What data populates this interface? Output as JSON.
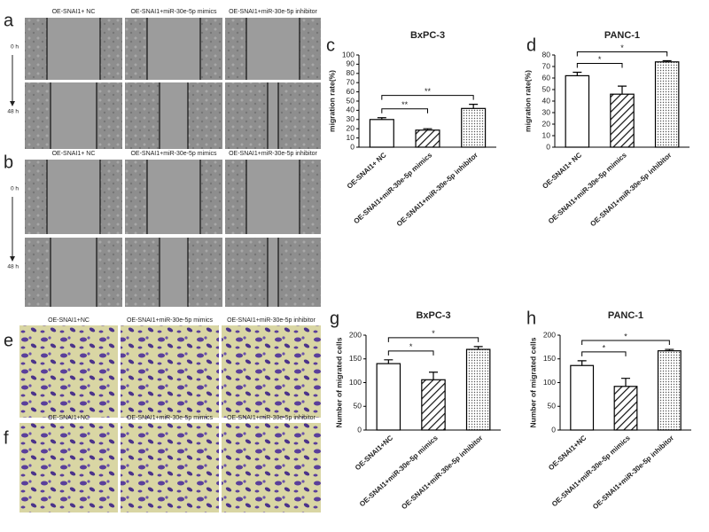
{
  "wound_healing": [
    {
      "label": "a",
      "columns": [
        "OE-SNAI1+ NC",
        "OE-SNAI1+miR-30e-5p mimics",
        "OE-SNAI1+miR-30e-5p inhibitor"
      ],
      "rows": [
        "0 h",
        "48 h"
      ]
    },
    {
      "label": "b",
      "columns": [
        "OE-SNAI1+ NC",
        "OE-SNAI1+miR-30e-5p mimics",
        "OE-SNAI1+miR-30e-5p inhibitor"
      ],
      "rows": [
        "0 h",
        "48 h"
      ]
    }
  ],
  "transwell": [
    {
      "label": "e",
      "columns": [
        "OE-SNAI1+NC",
        "OE-SNAI1+miR-30e-5p mimics",
        "OE-SNAI1+miR-30e-5p inhibitor"
      ]
    },
    {
      "label": "f",
      "columns": [
        "OE-SNAI1+NC",
        "OE-SNAI1+miR-30e-5p mimics",
        "OE-SNAI1+miR-30e-5p inhibitor"
      ]
    }
  ],
  "chart_data": [
    {
      "type": "bar",
      "label": "c",
      "title": "BxPC-3",
      "y_label": "migration rate(%)",
      "categories": [
        "OE-SNAI1+ NC",
        "OE-SNAI1+miR-30e-5p mimics",
        "OE-SNAI1+miR-30e-5p inhibitor"
      ],
      "values": [
        30,
        18.5,
        42
      ],
      "errors": [
        2,
        1.5,
        4.5
      ],
      "patterns": [
        "none",
        "diagonal",
        "dotted"
      ],
      "color": "#000000",
      "ylim": [
        0,
        100
      ],
      "yticks": [
        0,
        10,
        20,
        30,
        40,
        50,
        60,
        70,
        80,
        90,
        100
      ],
      "significance": [
        {
          "label": "**",
          "between": [
            0,
            1
          ]
        },
        {
          "label": "**",
          "between": [
            0,
            2
          ]
        }
      ]
    },
    {
      "type": "bar",
      "label": "d",
      "title": "PANC-1",
      "y_label": "migration rate(%)",
      "categories": [
        "OE-SNAI1+ NC",
        "OE-SNAI1+miR-30e-5p mimics",
        "OE-SNAI1+miR-30e-5p inhibitor"
      ],
      "values": [
        62,
        46,
        74
      ],
      "errors": [
        3,
        7,
        1
      ],
      "patterns": [
        "none",
        "diagonal",
        "dotted"
      ],
      "color": "#000000",
      "ylim": [
        0,
        80
      ],
      "yticks": [
        0,
        10,
        20,
        30,
        40,
        50,
        60,
        70,
        80
      ],
      "significance": [
        {
          "label": "*",
          "between": [
            0,
            1
          ]
        },
        {
          "label": "*",
          "between": [
            0,
            2
          ]
        }
      ]
    },
    {
      "type": "bar",
      "label": "g",
      "title": "BxPC-3",
      "y_label": "Number of migrated cells",
      "categories": [
        "OE-SNAI1+NC",
        "OE-SNAI1+miR-30e-5p mimics",
        "OE-SNAI1+miR-30e-5p inhibitor"
      ],
      "values": [
        140,
        106,
        170
      ],
      "errors": [
        8,
        16,
        6
      ],
      "patterns": [
        "none",
        "diagonal",
        "dotted"
      ],
      "color": "#000000",
      "ylim": [
        0,
        200
      ],
      "yticks": [
        0,
        50,
        100,
        150,
        200
      ],
      "significance": [
        {
          "label": "*",
          "between": [
            0,
            1
          ]
        },
        {
          "label": "*",
          "between": [
            0,
            2
          ]
        }
      ]
    },
    {
      "type": "bar",
      "label": "h",
      "title": "PANC-1",
      "y_label": "Number of migrated cells",
      "categories": [
        "OE-SNAI1+NC",
        "OE-SNAI1+miR-30e-5p mimics",
        "OE-SNAI1+miR-30e-5p inhibitor"
      ],
      "values": [
        136,
        92,
        167
      ],
      "errors": [
        10,
        17,
        3
      ],
      "patterns": [
        "none",
        "diagonal",
        "dotted"
      ],
      "color": "#000000",
      "ylim": [
        0,
        200
      ],
      "yticks": [
        0,
        50,
        100,
        150,
        200
      ],
      "significance": [
        {
          "label": "*",
          "between": [
            0,
            1
          ]
        },
        {
          "label": "*",
          "between": [
            0,
            2
          ]
        }
      ]
    }
  ]
}
